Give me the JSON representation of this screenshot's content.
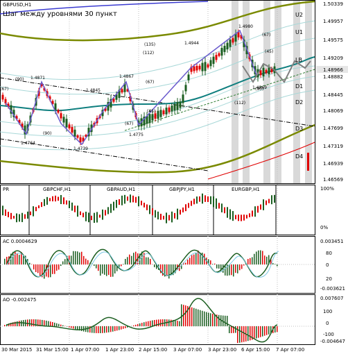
{
  "symbol_title": "GBPUSD,H1",
  "subtitle": "Шаг между уровнями 30 пункт",
  "colors": {
    "up_candle": "#1b5e20",
    "down_candle": "#e00000",
    "teal_ma": "#0f7f7f",
    "olive_band": "#7a8a00",
    "red_line": "#e00000",
    "zigzag": "#6a5acd",
    "forecast": "#808080",
    "shade": "#d9d9d9",
    "current_price_bg": "#e6e6e6"
  },
  "price_axis": [
    "1.50339",
    "1.49957",
    "1.49575",
    "1.49209",
    "1.48966",
    "1.48882",
    "1.48445",
    "1.48069",
    "1.47699",
    "1.47319",
    "1.46939",
    "1.46569"
  ],
  "current_price": "1.48966",
  "levels": [
    "U2",
    "U1",
    "LB",
    "D1",
    "D2",
    "D3",
    "D4"
  ],
  "annotations": {
    "swing_points": [
      "1.4980",
      "1.4944",
      "1.4871",
      "1.4867",
      "1.4845",
      "1.4869",
      "1.4775",
      "1.4739",
      "1.4764"
    ],
    "small_labels": [
      "(67)",
      "(135)",
      "(112)",
      "(45)",
      "(90)",
      "(90)",
      "(90)",
      "(67)",
      "(67)",
      "(45)",
      "(112)",
      "(67)"
    ]
  },
  "sub_panel_1": {
    "titles": [
      "GBPCHF,H1",
      "GBPAUD,H1",
      "GBPJPY,H1",
      "EURGBP,H1"
    ],
    "left_label": "PR",
    "scale": [
      "100%",
      "0%"
    ]
  },
  "ac_panel": {
    "title": "AC 0.0004629",
    "scale": [
      "0.003451",
      "80",
      "0",
      "20",
      "-0.003621"
    ]
  },
  "ao_panel": {
    "title": "AO -0.002475",
    "scale": [
      "0.007607",
      "100",
      "0",
      "-100",
      "-0.004647"
    ]
  },
  "time_axis": [
    "30 Mar 2015",
    "31 Mar 15:00",
    "1 Apr 07:00",
    "1 Apr 23:00",
    "2 Apr 15:00",
    "3 Apr 07:00",
    "3 Apr 23:00",
    "6 Apr 15:00",
    "7 Apr 07:00"
  ]
}
